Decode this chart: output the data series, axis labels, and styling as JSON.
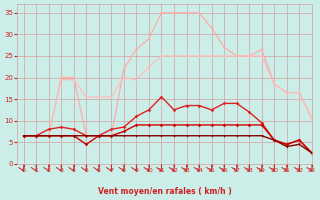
{
  "x": [
    0,
    1,
    2,
    3,
    4,
    5,
    6,
    7,
    8,
    9,
    10,
    11,
    12,
    13,
    14,
    15,
    16,
    17,
    18,
    19,
    20,
    21,
    22,
    23
  ],
  "series": {
    "rafales_max": [
      6.5,
      6.5,
      6.5,
      20.0,
      20.0,
      6.5,
      6.5,
      6.5,
      22.0,
      26.5,
      29.0,
      35.0,
      35.0,
      35.0,
      35.0,
      31.5,
      27.0,
      25.0,
      25.0,
      26.5,
      18.5,
      16.5,
      16.5,
      10.5
    ],
    "rafales_lower": [
      6.5,
      6.5,
      6.5,
      19.5,
      19.5,
      15.5,
      15.5,
      15.5,
      20.0,
      19.5,
      22.5,
      25.0,
      25.0,
      25.0,
      25.0,
      25.0,
      25.0,
      25.0,
      25.0,
      25.0,
      18.5,
      16.5,
      16.5,
      10.5
    ],
    "vent_high": [
      6.5,
      6.5,
      8.0,
      8.5,
      8.0,
      6.5,
      6.5,
      8.0,
      8.5,
      11.0,
      12.5,
      15.5,
      12.5,
      13.5,
      13.5,
      12.5,
      14.0,
      14.0,
      12.0,
      9.5,
      5.5,
      4.5,
      5.5,
      2.5
    ],
    "vent_low": [
      6.5,
      6.5,
      6.5,
      6.5,
      6.5,
      4.5,
      6.5,
      6.5,
      7.5,
      9.0,
      9.0,
      9.0,
      9.0,
      9.0,
      9.0,
      9.0,
      9.0,
      9.0,
      9.0,
      9.0,
      5.5,
      4.5,
      5.5,
      2.5
    ],
    "vent_min": [
      6.5,
      6.5,
      6.5,
      6.5,
      6.5,
      6.5,
      6.5,
      6.5,
      6.5,
      6.5,
      6.5,
      6.5,
      6.5,
      6.5,
      6.5,
      6.5,
      6.5,
      6.5,
      6.5,
      6.5,
      5.5,
      4.0,
      4.5,
      2.5
    ]
  },
  "xlabel": "Vent moyen/en rafales ( km/h )",
  "ylim": [
    0,
    37
  ],
  "xlim": [
    -0.5,
    23
  ],
  "yticks": [
    0,
    5,
    10,
    15,
    20,
    25,
    30,
    35
  ],
  "xticks": [
    0,
    1,
    2,
    3,
    4,
    5,
    6,
    7,
    8,
    9,
    10,
    11,
    12,
    13,
    14,
    15,
    16,
    17,
    18,
    19,
    20,
    21,
    22,
    23
  ],
  "bg_color": "#cceee8",
  "grid_color": "#d4a0a0",
  "color_rafales_max": "#ffaaaa",
  "color_rafales_lower": "#ffbbbb",
  "color_vent_high": "#dd2222",
  "color_vent_low": "#cc0000",
  "color_vent_min": "#880000",
  "tick_color": "#cc2222",
  "label_color": "#cc2222"
}
